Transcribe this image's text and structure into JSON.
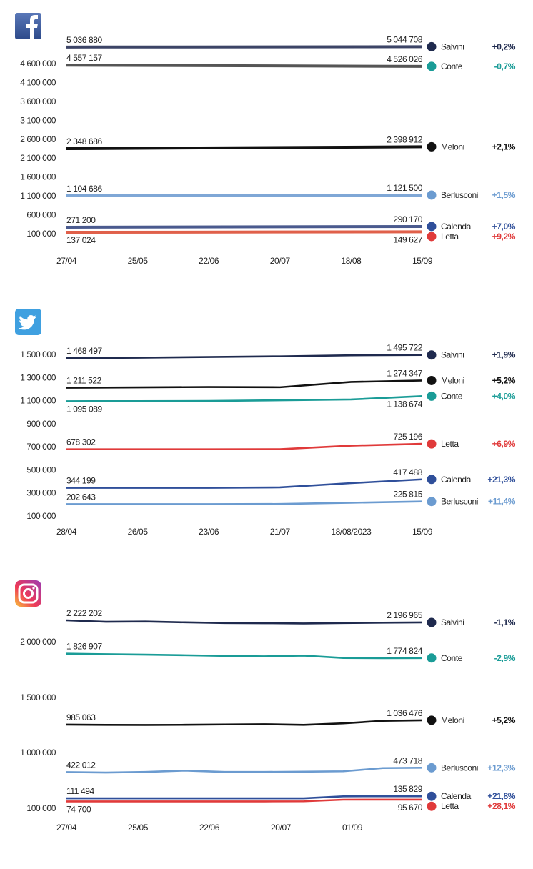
{
  "chart_data": [
    {
      "type": "line",
      "platform": "Facebook",
      "icon": "facebook-icon",
      "x_ticks": [
        "27/04",
        "25/05",
        "22/06",
        "20/07",
        "18/08",
        "15/09"
      ],
      "y_ticks": [
        "4 600 000",
        "4 100 000",
        "3 600 000",
        "3 100 000",
        "2 600 000",
        "2 100 000",
        "1 600 000",
        "1 100 000",
        "600 000",
        "100 000"
      ],
      "y_tick_values": [
        4600000,
        4100000,
        3600000,
        3100000,
        2600000,
        2100000,
        1600000,
        1100000,
        600000,
        100000
      ],
      "series": [
        {
          "name": "Salvini",
          "color": "#1f2a4e",
          "line_color": "#3c4466",
          "values": [
            5036880,
            5044708
          ],
          "start_label": "5 036 880",
          "end_label": "5 044 708",
          "change": "+0,2%",
          "label_pos": "above"
        },
        {
          "name": "Conte",
          "color": "#1a9c97",
          "line_color": "#555555",
          "values": [
            4557157,
            4526026
          ],
          "start_label": "4 557 157",
          "end_label": "4 526 026",
          "change": "-0,7%",
          "label_pos": "above"
        },
        {
          "name": "Meloni",
          "color": "#111111",
          "line_color": "#111111",
          "values": [
            2348686,
            2398912
          ],
          "start_label": "2 348 686",
          "end_label": "2 398 912",
          "change": "+2,1%",
          "label_pos": "above"
        },
        {
          "name": "Berlusconi",
          "color": "#6b9bd0",
          "line_color": "#7fa7d6",
          "values": [
            1104686,
            1121500
          ],
          "start_label": "1 104 686",
          "end_label": "1 121 500",
          "change": "+1,5%",
          "label_pos": "above"
        },
        {
          "name": "Calenda",
          "color": "#2f4f9a",
          "line_color": "#4a5a8e",
          "values": [
            271200,
            290170
          ],
          "start_label": "271 200",
          "end_label": "290 170",
          "change": "+7,0%",
          "label_pos": "above"
        },
        {
          "name": "Letta",
          "color": "#e03a3a",
          "line_color": "#e0604a",
          "values": [
            137024,
            149627
          ],
          "start_label": "137 024",
          "end_label": "149 627",
          "change": "+9,2%",
          "label_pos": "below"
        }
      ]
    },
    {
      "type": "line",
      "platform": "Twitter",
      "icon": "twitter-icon",
      "x_ticks": [
        "28/04",
        "26/05",
        "23/06",
        "21/07",
        "18/08/2023",
        "15/09"
      ],
      "y_ticks": [
        "1 500 000",
        "1 300 000",
        "1 100 000",
        "900 000",
        "700 000",
        "500 000",
        "300 000",
        "100 000"
      ],
      "y_tick_values": [
        1500000,
        1300000,
        1100000,
        900000,
        700000,
        500000,
        300000,
        100000
      ],
      "series": [
        {
          "name": "Salvini",
          "color": "#1f2a4e",
          "line_color": "#1f2a4e",
          "values": [
            1468497,
            1472000,
            1478000,
            1484000,
            1493000,
            1495722
          ],
          "start_label": "1 468 497",
          "end_label": "1 495 722",
          "change": "+1,9%",
          "label_pos": "above"
        },
        {
          "name": "Meloni",
          "color": "#111111",
          "line_color": "#111111",
          "values": [
            1211522,
            1215000,
            1218000,
            1216000,
            1262000,
            1274347
          ],
          "start_label": "1 211 522",
          "end_label": "1 274 347",
          "change": "+5,2%",
          "label_pos": "above"
        },
        {
          "name": "Conte",
          "color": "#1a9c97",
          "line_color": "#1a9c97",
          "values": [
            1095089,
            1096000,
            1097000,
            1103000,
            1110000,
            1138674
          ],
          "start_label": "1 095 089",
          "end_label": "1 138 674",
          "change": "+4,0%",
          "label_pos": "below"
        },
        {
          "name": "Letta",
          "color": "#e03a3a",
          "line_color": "#e03a3a",
          "values": [
            678302,
            678302,
            678302,
            679000,
            710000,
            725196
          ],
          "start_label": "678 302",
          "end_label": "725 196",
          "change": "+6,9%",
          "label_pos": "above"
        },
        {
          "name": "Calenda",
          "color": "#2f4f9a",
          "line_color": "#2f4f9a",
          "values": [
            344199,
            344199,
            344500,
            348000,
            385000,
            417488
          ],
          "start_label": "344 199",
          "end_label": "417 488",
          "change": "+21,3%",
          "label_pos": "above"
        },
        {
          "name": "Berlusconi",
          "color": "#6b9bd0",
          "line_color": "#6b9bd0",
          "values": [
            202643,
            202643,
            202643,
            204000,
            215000,
            225815
          ],
          "start_label": "202 643",
          "end_label": "225 815",
          "change": "+11,4%",
          "label_pos": "above"
        }
      ]
    },
    {
      "type": "line",
      "platform": "Instagram",
      "icon": "instagram-icon",
      "x_ticks": [
        "27/04",
        "25/05",
        "22/06",
        "20/07",
        "01/09"
      ],
      "y_ticks": [
        "2 000 000",
        "1 500 000",
        "1 000 000",
        "100 000"
      ],
      "y_tick_values": [
        2000000,
        1500000,
        1000000,
        100000
      ],
      "series": [
        {
          "name": "Salvini",
          "color": "#1f2a4e",
          "line_color": "#1f2a4e",
          "values": [
            2222202,
            2205000,
            2208000,
            2198000,
            2190000,
            2188000,
            2185000,
            2190000,
            2194000,
            2196965
          ],
          "start_label": "2 222 202",
          "end_label": "2 196 965",
          "change": "-1,1%",
          "label_pos": "above"
        },
        {
          "name": "Conte",
          "color": "#1a9c97",
          "line_color": "#1a9c97",
          "values": [
            1826907,
            1820000,
            1815000,
            1808000,
            1800000,
            1795000,
            1803000,
            1776000,
            1774000,
            1774824
          ],
          "start_label": "1 826 907",
          "end_label": "1 774 824",
          "change": "-2,9%",
          "label_pos": "above"
        },
        {
          "name": "Meloni",
          "color": "#111111",
          "line_color": "#111111",
          "values": [
            985063,
            982000,
            981000,
            983000,
            987000,
            990000,
            982000,
            1000000,
            1030000,
            1036476
          ],
          "start_label": "985 063",
          "end_label": "1 036 476",
          "change": "+5,2%",
          "label_pos": "above"
        },
        {
          "name": "Berlusconi",
          "color": "#6b9bd0",
          "line_color": "#6b9bd0",
          "values": [
            422012,
            417000,
            424000,
            440000,
            424000,
            424000,
            427000,
            432000,
            470000,
            473718
          ],
          "start_label": "422 012",
          "end_label": "473 718",
          "change": "+12,3%",
          "label_pos": "above"
        },
        {
          "name": "Calenda",
          "color": "#2f4f9a",
          "line_color": "#2f4f9a",
          "values": [
            111494,
            111494,
            111494,
            111494,
            111494,
            111494,
            111494,
            135000,
            135829,
            135829
          ],
          "start_label": "111 494",
          "end_label": "135 829",
          "change": "+21,8%",
          "label_pos": "above"
        },
        {
          "name": "Letta",
          "color": "#e03a3a",
          "line_color": "#e03a3a",
          "values": [
            74700,
            74700,
            74700,
            74700,
            74700,
            74700,
            76000,
            95000,
            95670,
            95670
          ],
          "start_label": "74 700",
          "end_label": "95 670",
          "change": "+28,1%",
          "label_pos": "below"
        }
      ]
    }
  ]
}
